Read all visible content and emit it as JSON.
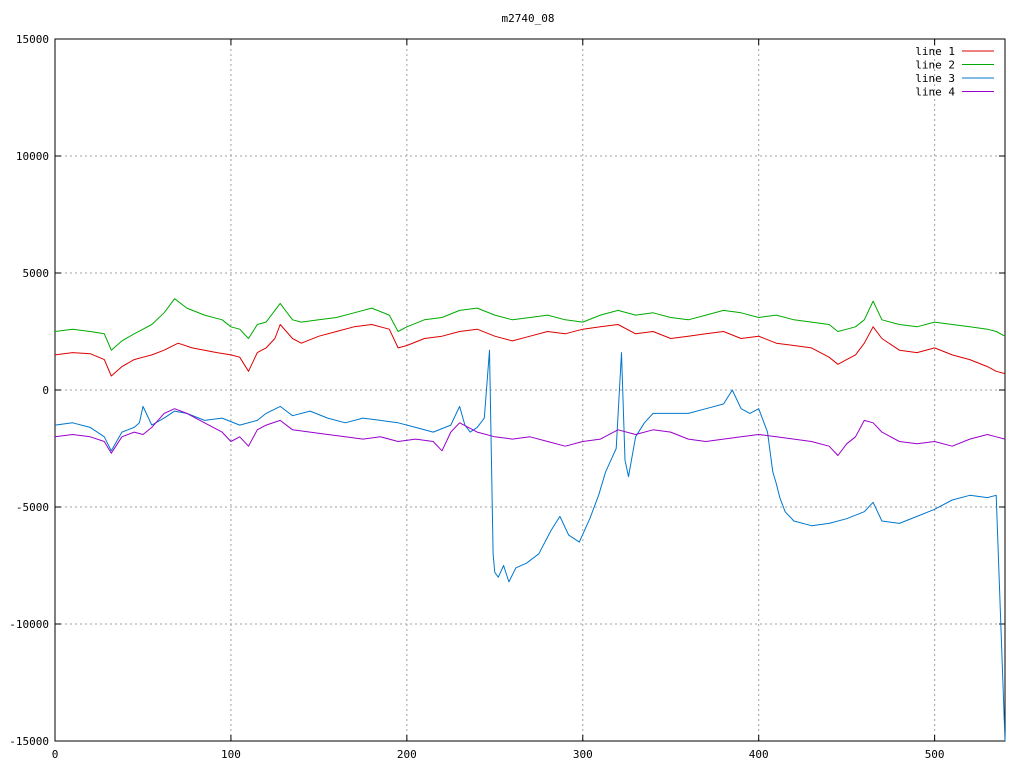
{
  "chart_data": {
    "type": "line",
    "title": "m2740_08",
    "xlabel": "",
    "ylabel": "",
    "xlim": [
      0,
      540
    ],
    "ylim": [
      -15000,
      15000
    ],
    "x_ticks": [
      0,
      100,
      200,
      300,
      400,
      500
    ],
    "y_ticks": [
      -15000,
      -10000,
      -5000,
      0,
      5000,
      10000,
      15000
    ],
    "grid": true,
    "legend_position": "top-right",
    "series": [
      {
        "name": "line 1",
        "color": "#dd0000",
        "x": [
          0,
          10,
          20,
          28,
          32,
          38,
          45,
          50,
          55,
          62,
          70,
          78,
          85,
          92,
          100,
          105,
          110,
          115,
          120,
          125,
          128,
          135,
          140,
          150,
          160,
          170,
          180,
          190,
          195,
          200,
          210,
          220,
          230,
          240,
          250,
          260,
          270,
          280,
          290,
          300,
          310,
          320,
          330,
          340,
          350,
          360,
          370,
          380,
          390,
          400,
          410,
          420,
          430,
          440,
          445,
          450,
          455,
          460,
          465,
          470,
          480,
          490,
          500,
          510,
          520,
          530,
          535,
          540
        ],
        "y": [
          1500,
          1600,
          1550,
          1300,
          600,
          1000,
          1300,
          1400,
          1500,
          1700,
          2000,
          1800,
          1700,
          1600,
          1500,
          1400,
          800,
          1600,
          1800,
          2200,
          2800,
          2200,
          2000,
          2300,
          2500,
          2700,
          2800,
          2600,
          1800,
          1900,
          2200,
          2300,
          2500,
          2600,
          2300,
          2100,
          2300,
          2500,
          2400,
          2600,
          2700,
          2800,
          2400,
          2500,
          2200,
          2300,
          2400,
          2500,
          2200,
          2300,
          2000,
          1900,
          1800,
          1400,
          1100,
          1300,
          1500,
          2000,
          2700,
          2200,
          1700,
          1600,
          1800,
          1500,
          1300,
          1000,
          800,
          700
        ]
      },
      {
        "name": "line 2",
        "color": "#00aa00",
        "x": [
          0,
          10,
          20,
          28,
          32,
          38,
          45,
          50,
          55,
          62,
          68,
          75,
          85,
          95,
          100,
          105,
          110,
          115,
          120,
          128,
          135,
          140,
          150,
          160,
          170,
          180,
          190,
          195,
          200,
          210,
          220,
          230,
          240,
          250,
          260,
          270,
          280,
          290,
          300,
          310,
          320,
          330,
          340,
          350,
          360,
          370,
          380,
          390,
          400,
          410,
          420,
          430,
          440,
          445,
          450,
          455,
          460,
          465,
          470,
          480,
          490,
          500,
          510,
          520,
          530,
          535,
          540
        ],
        "y": [
          2500,
          2600,
          2500,
          2400,
          1700,
          2100,
          2400,
          2600,
          2800,
          3300,
          3900,
          3500,
          3200,
          3000,
          2700,
          2600,
          2200,
          2800,
          2900,
          3700,
          3000,
          2900,
          3000,
          3100,
          3300,
          3500,
          3200,
          2500,
          2700,
          3000,
          3100,
          3400,
          3500,
          3200,
          3000,
          3100,
          3200,
          3000,
          2900,
          3200,
          3400,
          3200,
          3300,
          3100,
          3000,
          3200,
          3400,
          3300,
          3100,
          3200,
          3000,
          2900,
          2800,
          2500,
          2600,
          2700,
          3000,
          3800,
          3000,
          2800,
          2700,
          2900,
          2800,
          2700,
          2600,
          2500,
          2300
        ]
      },
      {
        "name": "line 3",
        "color": "#0077cc",
        "x": [
          0,
          10,
          20,
          28,
          32,
          38,
          45,
          48,
          50,
          55,
          62,
          68,
          75,
          85,
          95,
          105,
          115,
          120,
          128,
          135,
          145,
          155,
          165,
          175,
          185,
          195,
          205,
          215,
          225,
          230,
          233,
          236,
          240,
          244,
          247,
          249,
          250,
          252,
          255,
          258,
          262,
          268,
          275,
          282,
          287,
          292,
          298,
          304,
          309,
          313,
          316,
          319,
          322,
          324,
          326,
          330,
          335,
          340,
          350,
          360,
          370,
          380,
          385,
          390,
          395,
          400,
          405,
          408,
          410,
          412,
          415,
          420,
          430,
          440,
          450,
          460,
          465,
          470,
          480,
          490,
          500,
          510,
          520,
          530,
          535,
          540
        ],
        "y": [
          -1500,
          -1400,
          -1600,
          -2000,
          -2600,
          -1800,
          -1600,
          -1400,
          -700,
          -1500,
          -1200,
          -900,
          -1000,
          -1300,
          -1200,
          -1500,
          -1300,
          -1000,
          -700,
          -1100,
          -900,
          -1200,
          -1400,
          -1200,
          -1300,
          -1400,
          -1600,
          -1800,
          -1500,
          -700,
          -1500,
          -1800,
          -1600,
          -1200,
          1700,
          -7000,
          -7800,
          -8000,
          -7500,
          -8200,
          -7600,
          -7400,
          -7000,
          -6000,
          -5400,
          -6200,
          -6500,
          -5500,
          -4500,
          -3500,
          -3000,
          -2500,
          1600,
          -3000,
          -3700,
          -2000,
          -1400,
          -1000,
          -1000,
          -1000,
          -800,
          -600,
          0,
          -800,
          -1000,
          -800,
          -1800,
          -3500,
          -4000,
          -4600,
          -5200,
          -5600,
          -5800,
          -5700,
          -5500,
          -5200,
          -4800,
          -5600,
          -5700,
          -5400,
          -5100,
          -4700,
          -4500,
          -4600,
          -4500,
          -15000
        ]
      },
      {
        "name": "line 4",
        "color": "#9900cc",
        "x": [
          0,
          10,
          20,
          28,
          32,
          38,
          45,
          50,
          55,
          62,
          68,
          75,
          85,
          95,
          100,
          105,
          110,
          115,
          120,
          128,
          135,
          145,
          155,
          165,
          175,
          185,
          195,
          205,
          215,
          220,
          225,
          230,
          240,
          250,
          260,
          270,
          280,
          290,
          300,
          310,
          320,
          330,
          340,
          350,
          360,
          370,
          380,
          390,
          400,
          410,
          420,
          430,
          440,
          445,
          450,
          455,
          460,
          465,
          470,
          480,
          490,
          500,
          510,
          520,
          530,
          535,
          540
        ],
        "y": [
          -2000,
          -1900,
          -2000,
          -2200,
          -2700,
          -2000,
          -1800,
          -1900,
          -1600,
          -1000,
          -800,
          -1000,
          -1400,
          -1800,
          -2200,
          -2000,
          -2400,
          -1700,
          -1500,
          -1300,
          -1700,
          -1800,
          -1900,
          -2000,
          -2100,
          -2000,
          -2200,
          -2100,
          -2200,
          -2600,
          -1800,
          -1400,
          -1800,
          -2000,
          -2100,
          -2000,
          -2200,
          -2400,
          -2200,
          -2100,
          -1700,
          -1900,
          -1700,
          -1800,
          -2100,
          -2200,
          -2100,
          -2000,
          -1900,
          -2000,
          -2100,
          -2200,
          -2400,
          -2800,
          -2300,
          -2000,
          -1300,
          -1400,
          -1800,
          -2200,
          -2300,
          -2200,
          -2400,
          -2100,
          -1900,
          -2000,
          -2100
        ]
      }
    ]
  }
}
